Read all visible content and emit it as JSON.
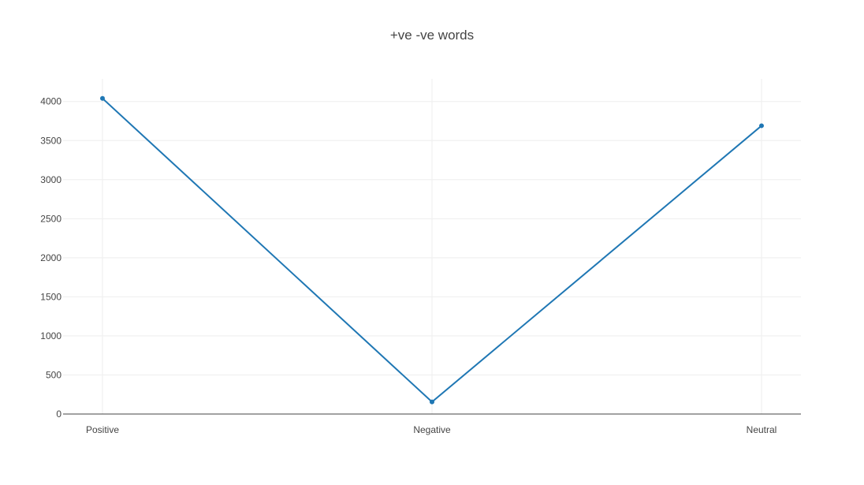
{
  "chart_data": {
    "type": "line",
    "title": "+ve -ve words",
    "categories": [
      "Positive",
      "Negative",
      "Neutral"
    ],
    "series": [
      {
        "values": [
          4040,
          155,
          3690
        ],
        "color": "#1f77b4"
      }
    ],
    "ylim": [
      0,
      4290
    ],
    "yticks": [
      0,
      500,
      1000,
      1500,
      2000,
      2500,
      3000,
      3500,
      4000
    ],
    "ytick_labels": [
      "0",
      "500",
      "1000",
      "1500",
      "2000",
      "2500",
      "3000",
      "3500",
      "4000"
    ],
    "xlabel": "",
    "ylabel": "",
    "grid": true,
    "legend": "none",
    "markers": true
  }
}
